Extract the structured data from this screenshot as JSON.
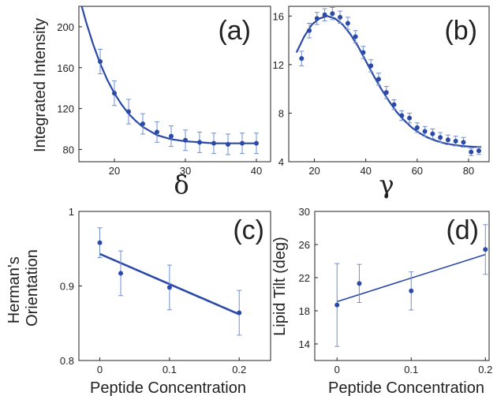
{
  "chart_data": [
    {
      "id": "a",
      "type": "scatter",
      "panel_label": "(a)",
      "xlabel": "δ",
      "ylabel": "Integrated Intensity",
      "xlim": [
        15,
        42
      ],
      "ylim": [
        68,
        220
      ],
      "xticks": [
        20,
        30,
        40
      ],
      "yticks": [
        80,
        120,
        160,
        200
      ],
      "grid": false,
      "points": {
        "x": [
          18,
          20,
          22,
          24,
          26,
          28,
          30,
          32,
          34,
          36,
          38,
          40
        ],
        "y": [
          166,
          135,
          117,
          105,
          97,
          93,
          89,
          87,
          86,
          85,
          86,
          86
        ],
        "err": [
          12,
          12,
          12,
          10,
          10,
          10,
          10,
          10,
          10,
          10,
          10,
          10
        ]
      },
      "fit": {
        "x": [
          15,
          16,
          17,
          18,
          19,
          20,
          21,
          22,
          23,
          24,
          25,
          26,
          27,
          28,
          29,
          30,
          31,
          32,
          33,
          34,
          35,
          36,
          37,
          38,
          39,
          40
        ],
        "y": [
          230,
          205,
          183,
          164,
          148,
          135,
          124,
          115,
          108,
          102,
          98,
          94,
          92,
          90,
          89,
          88,
          87.5,
          87,
          86.5,
          86,
          86,
          86,
          86,
          86,
          86,
          86
        ]
      }
    },
    {
      "id": "b",
      "type": "scatter",
      "panel_label": "(b)",
      "xlabel": "γ",
      "ylabel": "",
      "xlim": [
        10,
        88
      ],
      "ylim": [
        4,
        16.8
      ],
      "xticks": [
        20,
        40,
        60,
        80
      ],
      "yticks": [
        4,
        8,
        12,
        16
      ],
      "grid": false,
      "points": {
        "x": [
          15,
          18,
          21,
          24,
          27,
          30,
          33,
          36,
          39,
          42,
          45,
          48,
          51,
          54,
          57,
          60,
          63,
          66,
          69,
          72,
          75,
          78,
          81,
          84
        ],
        "y": [
          12.5,
          14.8,
          15.8,
          16.1,
          16.2,
          15.9,
          15.4,
          14.3,
          13.0,
          11.9,
          10.8,
          9.7,
          8.7,
          7.8,
          7.6,
          6.8,
          6.5,
          6.3,
          6.0,
          5.8,
          5.7,
          5.6,
          4.8,
          4.9
        ],
        "err": [
          0.6,
          0.6,
          0.5,
          0.5,
          0.5,
          0.5,
          0.5,
          0.5,
          0.5,
          0.5,
          0.5,
          0.5,
          0.4,
          0.4,
          0.4,
          0.4,
          0.4,
          0.4,
          0.4,
          0.4,
          0.4,
          0.4,
          0.3,
          0.3
        ]
      },
      "fit": {
        "x": [
          13,
          16,
          19,
          22,
          25,
          28,
          31,
          34,
          37,
          40,
          43,
          46,
          49,
          52,
          55,
          58,
          61,
          64,
          67,
          70,
          73,
          76,
          79,
          82,
          85
        ],
        "y": [
          13.0,
          14.3,
          15.3,
          15.8,
          16.0,
          15.8,
          15.3,
          14.5,
          13.5,
          12.3,
          11.1,
          10.0,
          9.0,
          8.1,
          7.4,
          6.8,
          6.35,
          6.0,
          5.75,
          5.55,
          5.42,
          5.33,
          5.27,
          5.23,
          5.2
        ]
      }
    },
    {
      "id": "c",
      "type": "scatter",
      "panel_label": "(c)",
      "xlabel": "Peptide Concentration",
      "ylabel": "Herman's Orientation",
      "xlim": [
        -0.03,
        0.245
      ],
      "ylim": [
        0.8,
        1.0
      ],
      "xticks": [
        0,
        0.1,
        0.2
      ],
      "xtick_labels": [
        "0",
        "0.1",
        "0.2"
      ],
      "yticks": [
        0.8,
        0.9,
        1.0
      ],
      "ytick_labels": [
        "0.8",
        "0.9",
        "1"
      ],
      "grid": false,
      "points": {
        "x": [
          0,
          0.03,
          0.1,
          0.2
        ],
        "y": [
          0.958,
          0.917,
          0.898,
          0.864
        ],
        "err": [
          0.02,
          0.03,
          0.03,
          0.03
        ]
      },
      "fit": {
        "x": [
          0,
          0.2
        ],
        "y": [
          0.943,
          0.862
        ]
      }
    },
    {
      "id": "d",
      "type": "scatter",
      "panel_label": "(d)",
      "xlabel": "Peptide Concentration",
      "ylabel": "Lipid Tilt (deg)",
      "xlim": [
        -0.03,
        0.205
      ],
      "ylim": [
        12,
        30
      ],
      "xticks": [
        0,
        0.1,
        0.2
      ],
      "xtick_labels": [
        "0",
        "0.1",
        "0.2"
      ],
      "yticks": [
        14,
        18,
        22,
        26,
        30
      ],
      "grid": false,
      "points": {
        "x": [
          0,
          0.03,
          0.1,
          0.2
        ],
        "y": [
          18.7,
          21.3,
          20.4,
          25.4
        ],
        "err": [
          5.0,
          2.3,
          2.3,
          3.0
        ]
      },
      "fit": {
        "x": [
          0,
          0.2
        ],
        "y": [
          19.1,
          24.8
        ]
      }
    }
  ],
  "colors": {
    "series": "#2b4aa8",
    "errorbar": "#6f8fcf",
    "axis": "#222222"
  }
}
